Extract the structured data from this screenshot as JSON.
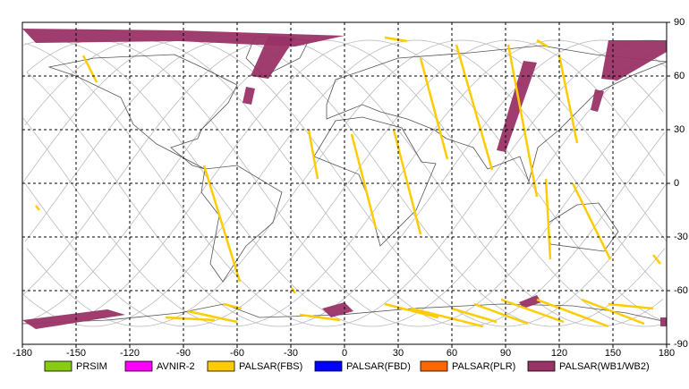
{
  "chart_data": {
    "type": "map",
    "xlim": [
      -180,
      180
    ],
    "ylim": [
      -90,
      90
    ],
    "xticks": [
      -180,
      -150,
      -120,
      -90,
      -60,
      -30,
      0,
      30,
      60,
      90,
      120,
      150,
      180
    ],
    "yticks": [
      90,
      60,
      30,
      0,
      -30,
      -60,
      -90
    ],
    "grid": true,
    "legend": [
      {
        "name": "PRSIM",
        "color": "#88cc11"
      },
      {
        "name": "AVNIR-2",
        "color": "#ff00ff"
      },
      {
        "name": "PALSAR(FBS)",
        "color": "#ffcc00"
      },
      {
        "name": "PALSAR(FBD)",
        "color": "#0000ff"
      },
      {
        "name": "PALSAR(PLR)",
        "color": "#ff6600"
      },
      {
        "name": "PALSAR(WB1/WB2)",
        "color": "#993366"
      }
    ]
  }
}
